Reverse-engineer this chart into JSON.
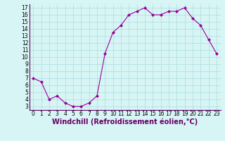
{
  "x": [
    0,
    1,
    2,
    3,
    4,
    5,
    6,
    7,
    8,
    9,
    10,
    11,
    12,
    13,
    14,
    15,
    16,
    17,
    18,
    19,
    20,
    21,
    22,
    23
  ],
  "y": [
    7.0,
    6.5,
    4.0,
    4.5,
    3.5,
    3.0,
    3.0,
    3.5,
    4.5,
    10.5,
    13.5,
    14.5,
    16.0,
    16.5,
    17.0,
    16.0,
    16.0,
    16.5,
    16.5,
    17.0,
    15.5,
    14.5,
    12.5,
    10.5
  ],
  "line_color": "#990099",
  "marker": "D",
  "marker_size": 2,
  "background_color": "#d8f5f5",
  "grid_color": "#aadddd",
  "xlabel": "Windchill (Refroidissement éolien,°C)",
  "xlim": [
    -0.5,
    23.5
  ],
  "ylim": [
    2.5,
    17.5
  ],
  "yticks": [
    3,
    4,
    5,
    6,
    7,
    8,
    9,
    10,
    11,
    12,
    13,
    14,
    15,
    16,
    17
  ],
  "xticks": [
    0,
    1,
    2,
    3,
    4,
    5,
    6,
    7,
    8,
    9,
    10,
    11,
    12,
    13,
    14,
    15,
    16,
    17,
    18,
    19,
    20,
    21,
    22,
    23
  ],
  "tick_label_size": 5.5,
  "xlabel_size": 7,
  "spine_color": "#660066",
  "linewidth": 0.8
}
